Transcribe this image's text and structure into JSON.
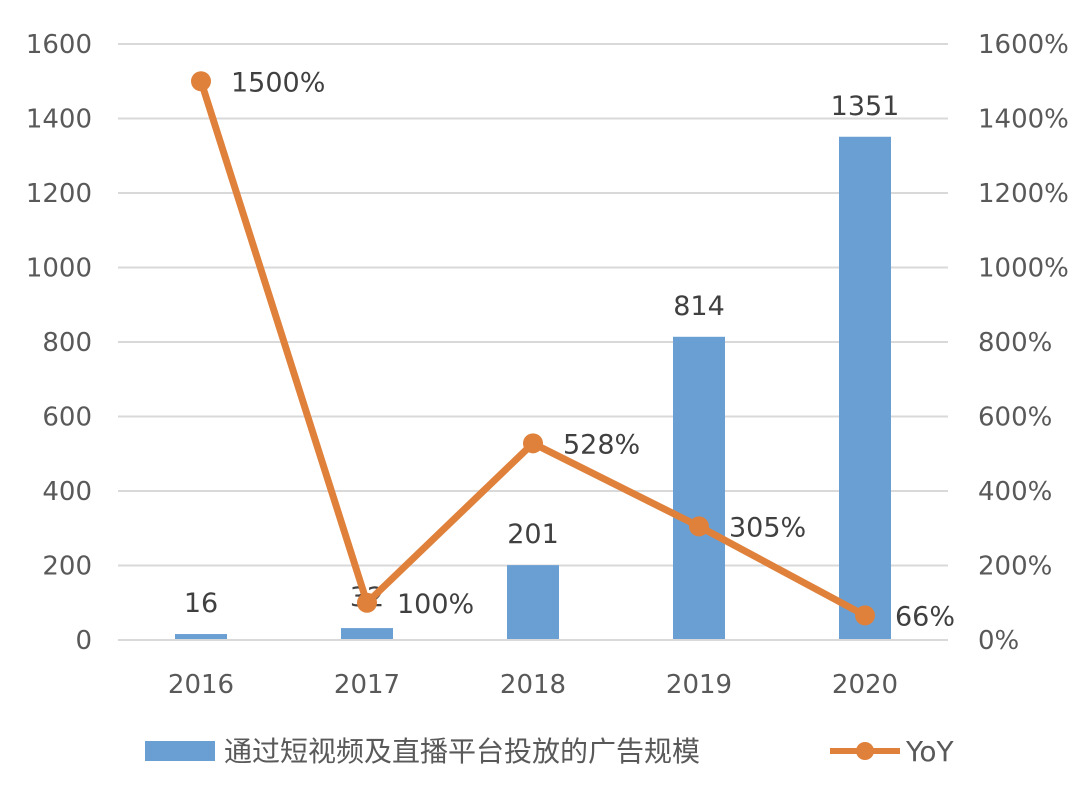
{
  "chart_data": {
    "type": "bar",
    "categories": [
      "2016",
      "2017",
      "2018",
      "2019",
      "2020"
    ],
    "series": [
      {
        "name": "通过短视频及直播平台投放的广告规模",
        "kind": "bar",
        "axis": "left",
        "color": "#6a9fd4",
        "values": [
          16,
          32,
          201,
          814,
          1351
        ],
        "labels": [
          "16",
          "32",
          "201",
          "814",
          "1351"
        ]
      },
      {
        "name": "YoY",
        "kind": "line",
        "axis": "right",
        "color": "#e0813b",
        "values": [
          1500,
          100,
          528,
          305,
          66
        ],
        "labels": [
          "1500%",
          "100%",
          "528%",
          "305%",
          "66%"
        ]
      }
    ],
    "y_left": {
      "ylim": [
        0,
        1600
      ],
      "ticks": [
        "0",
        "200",
        "400",
        "600",
        "800",
        "1000",
        "1200",
        "1400",
        "1600"
      ]
    },
    "y_right": {
      "ylim": [
        0,
        1600
      ],
      "ticks": [
        "0%",
        "200%",
        "400%",
        "600%",
        "800%",
        "1000%",
        "1200%",
        "1400%",
        "1600%"
      ]
    },
    "grid": true,
    "legend_position": "bottom",
    "title": "",
    "xlabel": "",
    "ylabel": ""
  }
}
